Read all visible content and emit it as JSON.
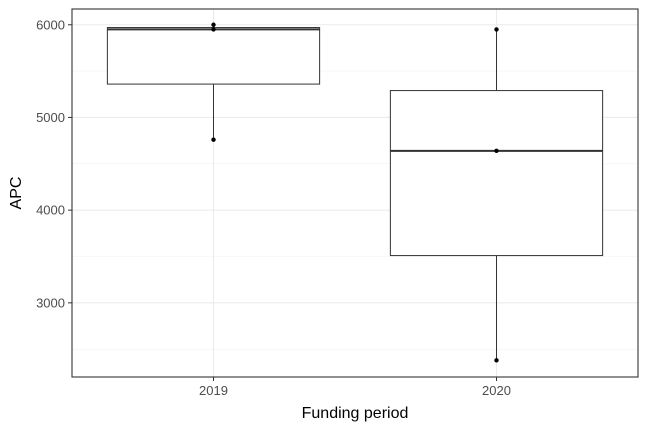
{
  "chart_data": {
    "type": "box",
    "xlabel": "Funding period",
    "ylabel": "APC",
    "categories": [
      "2019",
      "2020"
    ],
    "ylim": [
      2200,
      6170
    ],
    "yticks": [
      3000,
      4000,
      5000,
      6000
    ],
    "grid": true,
    "boxes": [
      {
        "category": "2019",
        "lower_whisker": 4760,
        "q1": 5360,
        "median": 5950,
        "q3": 5970,
        "upper_whisker": 6000
      },
      {
        "category": "2020",
        "lower_whisker": 2380,
        "q1": 3510,
        "median": 4640,
        "q3": 5290,
        "upper_whisker": 5950
      }
    ],
    "points": [
      {
        "category": "2019",
        "y": 6000
      },
      {
        "category": "2019",
        "y": 5950
      },
      {
        "category": "2019",
        "y": 4760
      },
      {
        "category": "2020",
        "y": 5950
      },
      {
        "category": "2020",
        "y": 4640
      },
      {
        "category": "2020",
        "y": 2380
      }
    ]
  }
}
